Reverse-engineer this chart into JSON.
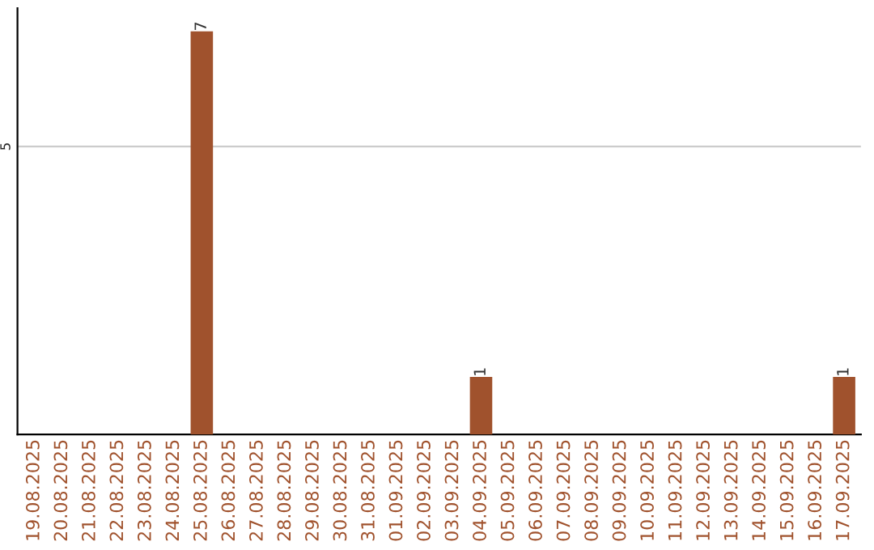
{
  "chart_data": {
    "type": "bar",
    "categories": [
      "19.08.2025",
      "20.08.2025",
      "21.08.2025",
      "22.08.2025",
      "23.08.2025",
      "24.08.2025",
      "25.08.2025",
      "26.08.2025",
      "27.08.2025",
      "28.08.2025",
      "29.08.2025",
      "30.08.2025",
      "31.08.2025",
      "01.09.2025",
      "02.09.2025",
      "03.09.2025",
      "04.09.2025",
      "05.09.2025",
      "06.09.2025",
      "07.09.2025",
      "08.09.2025",
      "09.09.2025",
      "10.09.2025",
      "11.09.2025",
      "12.09.2025",
      "13.09.2025",
      "14.09.2025",
      "15.09.2025",
      "16.09.2025",
      "17.09.2025"
    ],
    "values": [
      0,
      0,
      0,
      0,
      0,
      0,
      7,
      0,
      0,
      0,
      0,
      0,
      0,
      0,
      0,
      0,
      1,
      0,
      0,
      0,
      0,
      0,
      0,
      0,
      0,
      0,
      0,
      0,
      0,
      1
    ],
    "value_labels": [
      null,
      null,
      null,
      null,
      null,
      null,
      "7",
      null,
      null,
      null,
      null,
      null,
      null,
      null,
      null,
      null,
      "1",
      null,
      null,
      null,
      null,
      null,
      null,
      null,
      null,
      null,
      null,
      null,
      null,
      "1"
    ],
    "color": "#a0522d",
    "ylim": [
      0,
      7.4
    ],
    "yticks": [
      5
    ],
    "grid": "y"
  }
}
